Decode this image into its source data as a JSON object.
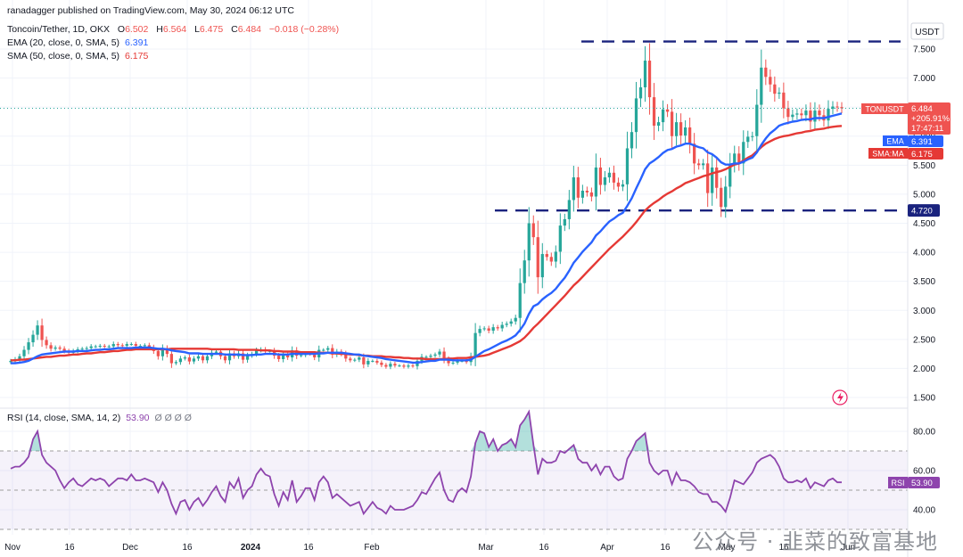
{
  "header": {
    "publisher": "ranadagger published on TradingView.com, May 30, 2024 06:12 UTC",
    "symbol_line": "Toncoin/Tether, 1D, OKX",
    "ohlc": {
      "o_label": "O",
      "o": "6.502",
      "h_label": "H",
      "h": "6.564",
      "l_label": "L",
      "l": "6.475",
      "c_label": "C",
      "c": "6.484",
      "change": "−0.018 (−0.28%)"
    },
    "ema_label": "EMA (20, close, 0, SMA, 5)",
    "ema_value": "6.391",
    "sma_label": "SMA (50, close, 0, SMA, 5)",
    "sma_value": "6.175"
  },
  "rsi_header": {
    "label": "RSI (14, close, SMA, 14, 2)",
    "value": "53.90",
    "extras": "Ø Ø Ø Ø"
  },
  "currency": "USDT",
  "badges": {
    "price_symbol": "TONUSDT",
    "price": "6.484",
    "change_pct": "+205.91%",
    "countdown": "17:47:11",
    "ema_tag": "EMA",
    "ema_value": "6.391",
    "sma_tag": "SMA:MA",
    "sma_value": "6.175",
    "support": "4.720",
    "rsi_tag": "RSI",
    "rsi_value": "53.90"
  },
  "watermark": "公众号 · 韭菜的致富基地",
  "colors": {
    "up": "#26a69a",
    "down": "#ef5350",
    "ema": "#2962ff",
    "sma": "#e53935",
    "rsi": "#8e44ad",
    "level": "#1a237e"
  },
  "chart_data": [
    {
      "type": "candlestick",
      "x_labels": [
        "Nov",
        "16",
        "Dec",
        "16",
        "2024",
        "16",
        "Feb",
        "Mar",
        "16",
        "Apr",
        "16",
        "May",
        "16",
        "Jun"
      ],
      "y_ticks": [
        "7.500",
        "7.000",
        "6.500",
        "6.000",
        "5.500",
        "5.000",
        "4.500",
        "4.000",
        "3.500",
        "3.000",
        "2.500",
        "2.000",
        "1.500"
      ],
      "ylim": [
        1.4,
        7.7
      ],
      "grid": true,
      "levels": [
        {
          "name": "resistance",
          "value": 7.63
        },
        {
          "name": "support",
          "value": 4.72
        }
      ],
      "close": [
        2.13,
        2.16,
        2.21,
        2.32,
        2.45,
        2.58,
        2.74,
        2.49,
        2.4,
        2.34,
        2.36,
        2.34,
        2.3,
        2.27,
        2.3,
        2.33,
        2.34,
        2.35,
        2.38,
        2.38,
        2.39,
        2.38,
        2.38,
        2.42,
        2.4,
        2.39,
        2.42,
        2.42,
        2.39,
        2.39,
        2.4,
        2.36,
        2.3,
        2.21,
        2.34,
        2.25,
        2.09,
        2.11,
        2.17,
        2.19,
        2.12,
        2.17,
        2.21,
        2.14,
        2.21,
        2.27,
        2.29,
        2.21,
        2.14,
        2.26,
        2.21,
        2.26,
        2.15,
        2.22,
        2.25,
        2.31,
        2.33,
        2.3,
        2.3,
        2.22,
        2.16,
        2.24,
        2.19,
        2.31,
        2.22,
        2.23,
        2.26,
        2.25,
        2.19,
        2.32,
        2.32,
        2.35,
        2.24,
        2.29,
        2.25,
        2.17,
        2.14,
        2.15,
        2.19,
        2.07,
        2.13,
        2.13,
        2.1,
        2.06,
        2.03,
        2.08,
        2.05,
        2.05,
        2.03,
        2.05,
        2.04,
        2.13,
        2.2,
        2.2,
        2.22,
        2.24,
        2.29,
        2.16,
        2.09,
        2.1,
        2.13,
        2.13,
        2.11,
        2.21,
        2.61,
        2.68,
        2.69,
        2.65,
        2.71,
        2.69,
        2.75,
        2.77,
        2.81,
        2.87,
        3.47,
        3.86,
        4.5,
        4.26,
        3.57,
        3.97,
        3.92,
        3.84,
        4.01,
        4.46,
        4.57,
        4.9,
        5.29,
        4.94,
        5.06,
        5.03,
        4.96,
        5.46,
        5.16,
        5.29,
        5.37,
        5.2,
        5.13,
        5.17,
        5.79,
        6.07,
        6.65,
        6.84,
        7.3,
        6.67,
        6.18,
        6.24,
        6.46,
        6.42,
        6.0,
        6.24,
        6.01,
        6.15,
        5.87,
        5.53,
        5.5,
        5.53,
        5.02,
        5.46,
        5.11,
        4.78,
        5.13,
        5.51,
        5.7,
        5.53,
        5.9,
        5.99,
        6.0,
        6.54,
        7.18,
        7.02,
        6.89,
        6.73,
        6.75,
        6.48,
        6.33,
        6.37,
        6.39,
        6.36,
        6.44,
        6.25,
        6.44,
        6.36,
        6.27,
        6.47,
        6.51,
        6.5,
        6.48
      ],
      "series": [
        {
          "name": "EMA (20, close, 0, SMA, 5)",
          "last": 6.391,
          "values": [
            2.09,
            2.09,
            2.1,
            2.11,
            2.13,
            2.17,
            2.21,
            2.24,
            2.25,
            2.26,
            2.27,
            2.28,
            2.29,
            2.29,
            2.29,
            2.3,
            2.3,
            2.3,
            2.31,
            2.32,
            2.32,
            2.33,
            2.33,
            2.34,
            2.35,
            2.35,
            2.35,
            2.35,
            2.36,
            2.36,
            2.36,
            2.36,
            2.35,
            2.34,
            2.34,
            2.33,
            2.31,
            2.3,
            2.29,
            2.28,
            2.26,
            2.26,
            2.26,
            2.25,
            2.25,
            2.25,
            2.25,
            2.25,
            2.24,
            2.24,
            2.24,
            2.24,
            2.23,
            2.23,
            2.23,
            2.24,
            2.24,
            2.25,
            2.25,
            2.25,
            2.24,
            2.24,
            2.24,
            2.25,
            2.25,
            2.25,
            2.25,
            2.25,
            2.25,
            2.26,
            2.26,
            2.27,
            2.27,
            2.27,
            2.27,
            2.26,
            2.25,
            2.24,
            2.24,
            2.22,
            2.21,
            2.2,
            2.19,
            2.18,
            2.16,
            2.15,
            2.14,
            2.13,
            2.12,
            2.11,
            2.1,
            2.1,
            2.11,
            2.12,
            2.13,
            2.13,
            2.15,
            2.15,
            2.15,
            2.14,
            2.14,
            2.14,
            2.14,
            2.15,
            2.2,
            2.25,
            2.3,
            2.33,
            2.37,
            2.41,
            2.45,
            2.48,
            2.52,
            2.57,
            2.66,
            2.77,
            2.94,
            3.07,
            3.11,
            3.19,
            3.25,
            3.3,
            3.37,
            3.47,
            3.56,
            3.68,
            3.82,
            3.91,
            4.01,
            4.09,
            4.17,
            4.29,
            4.36,
            4.45,
            4.53,
            4.58,
            4.64,
            4.68,
            4.8,
            4.93,
            5.1,
            5.26,
            5.43,
            5.53,
            5.58,
            5.64,
            5.71,
            5.76,
            5.78,
            5.82,
            5.84,
            5.87,
            5.87,
            5.84,
            5.81,
            5.79,
            5.72,
            5.69,
            5.63,
            5.55,
            5.51,
            5.51,
            5.53,
            5.53,
            5.56,
            5.6,
            5.63,
            5.72,
            5.85,
            5.96,
            6.05,
            6.11,
            6.18,
            6.21,
            6.23,
            6.25,
            6.26,
            6.28,
            6.29,
            6.29,
            6.31,
            6.31,
            6.31,
            6.33,
            6.35,
            6.37,
            6.39
          ]
        },
        {
          "name": "SMA (50, close, 0, SMA, 5)",
          "last": 6.175,
          "values": [
            2.14,
            2.14,
            2.15,
            2.15,
            2.16,
            2.17,
            2.18,
            2.19,
            2.2,
            2.2,
            2.21,
            2.22,
            2.22,
            2.23,
            2.24,
            2.24,
            2.25,
            2.26,
            2.26,
            2.27,
            2.28,
            2.28,
            2.29,
            2.3,
            2.3,
            2.31,
            2.32,
            2.32,
            2.33,
            2.33,
            2.33,
            2.33,
            2.33,
            2.33,
            2.33,
            2.33,
            2.34,
            2.34,
            2.34,
            2.34,
            2.34,
            2.34,
            2.34,
            2.34,
            2.34,
            2.33,
            2.33,
            2.33,
            2.33,
            2.33,
            2.33,
            2.32,
            2.32,
            2.32,
            2.32,
            2.32,
            2.31,
            2.31,
            2.31,
            2.3,
            2.3,
            2.29,
            2.29,
            2.29,
            2.29,
            2.28,
            2.28,
            2.28,
            2.28,
            2.27,
            2.27,
            2.27,
            2.26,
            2.26,
            2.25,
            2.25,
            2.24,
            2.24,
            2.23,
            2.22,
            2.22,
            2.21,
            2.21,
            2.21,
            2.2,
            2.2,
            2.19,
            2.19,
            2.18,
            2.18,
            2.17,
            2.17,
            2.17,
            2.16,
            2.16,
            2.16,
            2.16,
            2.16,
            2.17,
            2.17,
            2.18,
            2.18,
            2.18,
            2.19,
            2.2,
            2.21,
            2.22,
            2.24,
            2.27,
            2.3,
            2.33,
            2.36,
            2.39,
            2.43,
            2.47,
            2.53,
            2.61,
            2.7,
            2.77,
            2.85,
            2.93,
            3.01,
            3.09,
            3.17,
            3.25,
            3.34,
            3.43,
            3.5,
            3.58,
            3.66,
            3.74,
            3.82,
            3.9,
            3.98,
            4.06,
            4.13,
            4.2,
            4.27,
            4.35,
            4.43,
            4.52,
            4.62,
            4.72,
            4.79,
            4.85,
            4.9,
            4.96,
            5.01,
            5.05,
            5.1,
            5.14,
            5.19,
            5.22,
            5.25,
            5.28,
            5.31,
            5.33,
            5.36,
            5.38,
            5.4,
            5.43,
            5.47,
            5.51,
            5.53,
            5.58,
            5.63,
            5.67,
            5.74,
            5.81,
            5.87,
            5.91,
            5.95,
            5.98,
            6.0,
            6.01,
            6.03,
            6.05,
            6.06,
            6.08,
            6.09,
            6.11,
            6.12,
            6.13,
            6.15,
            6.16,
            6.17,
            6.175
          ]
        }
      ]
    },
    {
      "type": "line",
      "name": "RSI (14, close, SMA, 14, 2)",
      "y_ticks": [
        "80.00",
        "60.00",
        "40.00"
      ],
      "ylim": [
        27,
        92
      ],
      "band": [
        30,
        70
      ],
      "values": [
        61,
        62,
        62,
        64,
        67,
        76,
        80,
        68,
        64,
        62,
        60,
        55,
        51,
        54,
        56,
        53,
        52,
        54,
        56,
        55,
        56,
        55,
        52,
        54,
        56,
        56,
        55,
        58,
        55,
        55,
        56,
        55,
        54,
        49,
        54,
        50,
        43,
        38,
        44,
        45,
        40,
        44,
        46,
        42,
        45,
        49,
        52,
        47,
        44,
        54,
        51,
        56,
        46,
        50,
        52,
        58,
        61,
        58,
        57,
        48,
        42,
        49,
        45,
        55,
        44,
        47,
        51,
        51,
        45,
        54,
        57,
        54,
        46,
        48,
        46,
        44,
        42,
        43,
        44,
        38,
        41,
        44,
        41,
        40,
        38,
        42,
        40,
        40,
        40,
        41,
        42,
        45,
        49,
        48,
        52,
        56,
        59,
        50,
        45,
        44,
        49,
        51,
        49,
        57,
        74,
        80,
        79,
        72,
        76,
        70,
        73,
        74,
        76,
        72,
        83,
        86,
        90,
        73,
        58,
        66,
        64,
        64,
        65,
        70,
        69,
        71,
        73,
        66,
        64,
        64,
        60,
        63,
        58,
        62,
        62,
        57,
        55,
        56,
        66,
        70,
        75,
        77,
        79,
        64,
        60,
        58,
        60,
        60,
        53,
        59,
        55,
        55,
        54,
        52,
        49,
        48,
        48,
        44,
        44,
        42,
        39,
        46,
        55,
        54,
        53,
        56,
        59,
        64,
        66,
        67,
        68,
        66,
        62,
        56,
        54,
        54,
        55,
        54,
        56,
        51,
        54,
        53,
        52,
        55,
        56,
        54,
        54
      ]
    }
  ]
}
